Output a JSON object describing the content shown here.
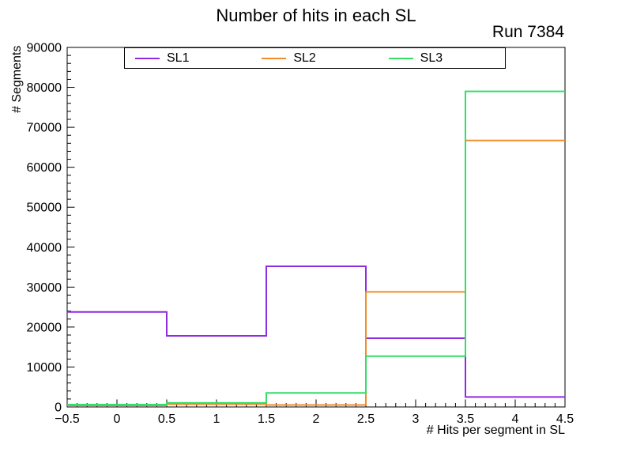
{
  "chart_data": {
    "type": "step-histogram",
    "title": "Number of hits in each SL",
    "annotation": "Run 7384",
    "xlabel": "# Hits per segment in SL",
    "ylabel": "# Segments",
    "xlim": [
      -0.5,
      4.5
    ],
    "ylim": [
      0,
      90000
    ],
    "grid": false,
    "legend_position": "top",
    "bin_edges": [
      -0.5,
      0.5,
      1.5,
      2.5,
      3.5,
      4.5
    ],
    "bin_centers": [
      0,
      1,
      2,
      3,
      4
    ],
    "x_major_ticks": [
      -0.5,
      0,
      0.5,
      1,
      1.5,
      2,
      2.5,
      3,
      3.5,
      4,
      4.5
    ],
    "x_tick_labels": [
      "−0.5",
      "0",
      "0.5",
      "1",
      "1.5",
      "2",
      "2.5",
      "3",
      "3.5",
      "4",
      "4.5"
    ],
    "x_minor_step": 0.1,
    "y_major_ticks": [
      0,
      10000,
      20000,
      30000,
      40000,
      50000,
      60000,
      70000,
      80000,
      90000
    ],
    "y_tick_labels": [
      "0",
      "10000",
      "20000",
      "30000",
      "40000",
      "50000",
      "60000",
      "70000",
      "80000",
      "90000"
    ],
    "y_minor_step": 2000,
    "series": [
      {
        "name": "SL1",
        "color": "#8f2be0",
        "values": [
          23800,
          17800,
          35200,
          17200,
          2500
        ]
      },
      {
        "name": "SL2",
        "color": "#f28c28",
        "values": [
          400,
          700,
          500,
          28800,
          66700
        ]
      },
      {
        "name": "SL3",
        "color": "#33dd66",
        "values": [
          600,
          1000,
          3500,
          12700,
          79000
        ]
      }
    ]
  }
}
